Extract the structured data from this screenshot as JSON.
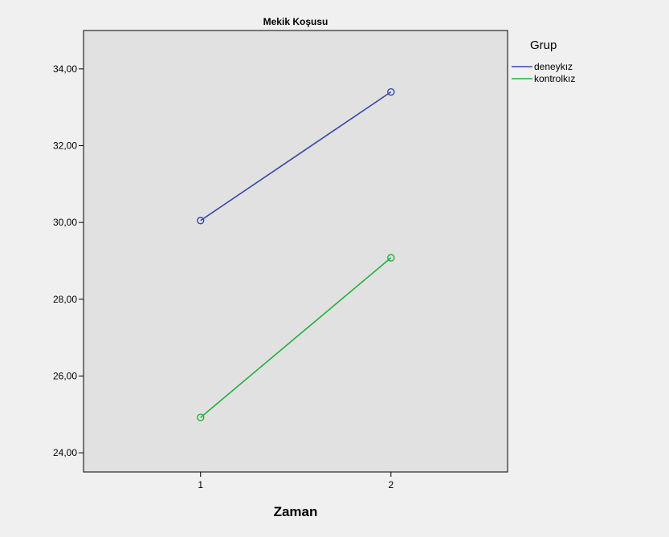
{
  "chart_data": {
    "type": "line",
    "title": "Mekik Koşusu",
    "xlabel": "Zaman",
    "ylabel": "",
    "categories": [
      "1",
      "2"
    ],
    "ylim": [
      23.5,
      35.0
    ],
    "yticks": [
      24,
      26,
      28,
      30,
      32,
      34
    ],
    "ytick_labels": [
      "24,00",
      "26,00",
      "28,00",
      "30,00",
      "32,00",
      "34,00"
    ],
    "grid": false,
    "legend": {
      "title": "Grup",
      "position": "right"
    },
    "series": [
      {
        "name": "deneykız",
        "values": [
          30.05,
          33.4
        ],
        "color": "#3949a3"
      },
      {
        "name": "kontrolkız",
        "values": [
          24.92,
          29.08
        ],
        "color": "#22b03a"
      }
    ]
  }
}
